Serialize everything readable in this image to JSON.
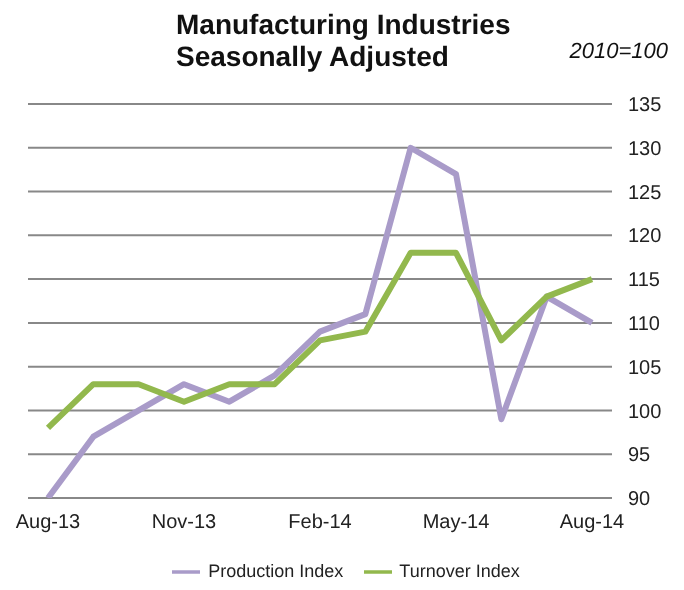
{
  "chart_data": {
    "type": "line",
    "title": "Manufacturing Industries\nSeasonally Adjusted",
    "annotations": [
      "2010=100"
    ],
    "categories": [
      "Aug-13",
      null,
      null,
      "Nov-13",
      null,
      null,
      "Feb-14",
      null,
      null,
      "May-14",
      null,
      null,
      "Aug-14"
    ],
    "series": [
      {
        "name": "Production Index",
        "color": "#a99bc9",
        "values": [
          90,
          97,
          100,
          103,
          101,
          104,
          109,
          111,
          130,
          127,
          99,
          113,
          110
        ]
      },
      {
        "name": "Turnover Index",
        "color": "#92b84d",
        "values": [
          98,
          103,
          103,
          101,
          103,
          103,
          108,
          109,
          118,
          118,
          108,
          113,
          115
        ]
      }
    ],
    "ylim": [
      90,
      135
    ],
    "yticks": [
      90,
      95,
      100,
      105,
      110,
      115,
      120,
      125,
      130,
      135
    ],
    "grid": "y",
    "legend": "bottom",
    "marker": "none",
    "line_style": "solid"
  }
}
